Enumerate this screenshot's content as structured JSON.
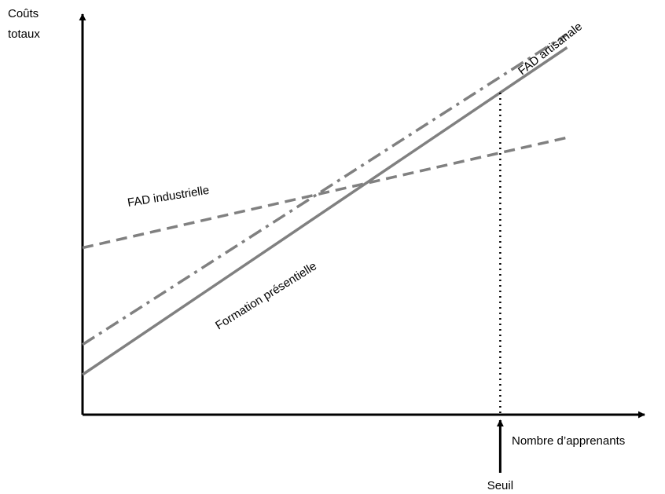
{
  "chart_data": {
    "type": "line",
    "title": "",
    "ylabel_lines": [
      "Coûts",
      "totaux"
    ],
    "xlabel": "Nombre d’apprenants",
    "threshold": {
      "label": "Seuil",
      "x": 1.0
    },
    "xlim": [
      0,
      1.16
    ],
    "ylim": [
      0,
      1.2
    ],
    "axis_ticks": "none",
    "grid": false,
    "legend": "none",
    "series": [
      {
        "name": "FAD industrielle",
        "style": "dashed",
        "color": "#808080",
        "x": [
          0,
          1.16
        ],
        "y": [
          0.5,
          0.83
        ]
      },
      {
        "name": "FAD artisanale",
        "style": "dash-dot",
        "color": "#808080",
        "x": [
          0,
          1.16
        ],
        "y": [
          0.21,
          1.14
        ]
      },
      {
        "name": "Formation présentielle",
        "style": "solid",
        "color": "#808080",
        "x": [
          0,
          1.16
        ],
        "y": [
          0.12,
          1.1
        ]
      }
    ]
  }
}
